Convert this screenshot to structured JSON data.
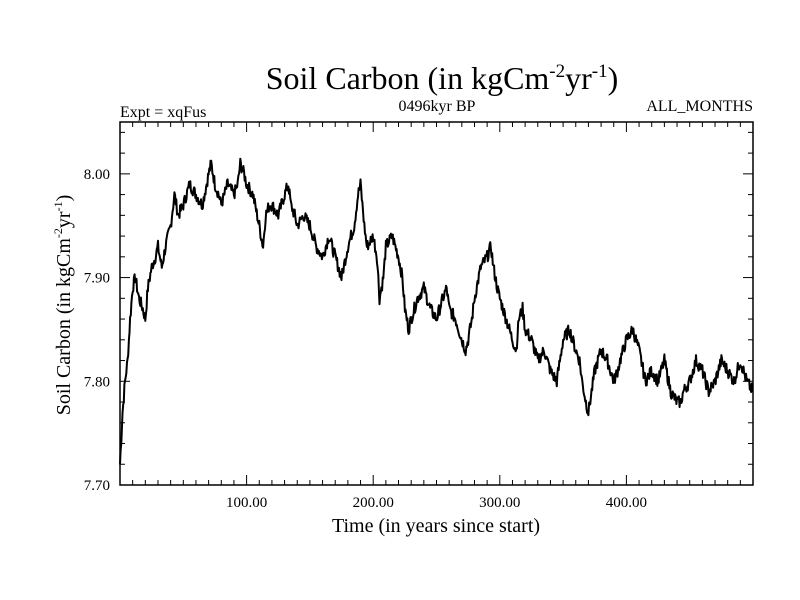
{
  "chart_data": {
    "type": "line",
    "title": "Soil Carbon (in kgCm",
    "title_sup1": "-2",
    "title_mid": "yr",
    "title_sup2": "-1",
    "title_end": ")",
    "subtitle_left": "Expt = xqFus",
    "subtitle_center": "0496kyr BP",
    "subtitle_right": "ALL_MONTHS",
    "xlabel": "Time (in years since start)",
    "ylabel": "Soil Carbon (in kgCm",
    "ylabel_sup1": "-2",
    "ylabel_mid": "yr",
    "ylabel_sup2": "-1",
    "ylabel_end": ")",
    "xlim": [
      0,
      500
    ],
    "ylim": [
      7.7,
      8.05
    ],
    "x_ticks": [
      {
        "value": 100,
        "label": "100.00"
      },
      {
        "value": 200,
        "label": "200.00"
      },
      {
        "value": 300,
        "label": "300.00"
      },
      {
        "value": 400,
        "label": "400.00"
      }
    ],
    "y_ticks": [
      {
        "value": 7.7,
        "label": "7.70"
      },
      {
        "value": 7.8,
        "label": "7.80"
      },
      {
        "value": 7.9,
        "label": "7.90"
      },
      {
        "value": 8.0,
        "label": "8.00"
      }
    ],
    "series": [
      {
        "name": "Soil Carbon",
        "color": "#000000",
        "x": [
          0,
          2,
          4,
          6,
          8,
          10,
          12,
          15,
          18,
          20,
          22,
          25,
          28,
          30,
          33,
          36,
          40,
          43,
          46,
          50,
          55,
          60,
          65,
          70,
          72,
          75,
          78,
          80,
          85,
          90,
          93,
          95,
          98,
          100,
          105,
          110,
          113,
          115,
          118,
          120,
          125,
          130,
          133,
          135,
          138,
          140,
          145,
          150,
          155,
          160,
          165,
          170,
          175,
          180,
          185,
          188,
          190,
          193,
          195,
          200,
          203,
          205,
          208,
          210,
          215,
          220,
          223,
          225,
          228,
          230,
          235,
          240,
          245,
          250,
          255,
          258,
          260,
          265,
          270,
          273,
          275,
          278,
          280,
          285,
          290,
          293,
          295,
          298,
          300,
          305,
          310,
          313,
          315,
          318,
          320,
          325,
          330,
          335,
          340,
          345,
          350,
          355,
          360,
          363,
          365,
          368,
          370,
          375,
          380,
          385,
          390,
          393,
          395,
          400,
          405,
          410,
          415,
          420,
          425,
          430,
          435,
          440,
          443,
          445,
          450,
          455,
          460,
          465,
          470,
          475,
          480,
          485,
          490,
          495,
          500
        ],
        "y": [
          7.72,
          7.77,
          7.8,
          7.82,
          7.86,
          7.89,
          7.9,
          7.88,
          7.87,
          7.86,
          7.89,
          7.91,
          7.92,
          7.93,
          7.91,
          7.93,
          7.95,
          7.98,
          7.96,
          7.97,
          7.99,
          7.98,
          7.97,
          8.0,
          8.01,
          7.99,
          7.98,
          7.97,
          7.99,
          7.98,
          7.99,
          8.01,
          8.0,
          7.99,
          7.98,
          7.95,
          7.93,
          7.96,
          7.97,
          7.97,
          7.96,
          7.98,
          7.99,
          7.97,
          7.96,
          7.95,
          7.96,
          7.95,
          7.93,
          7.92,
          7.94,
          7.92,
          7.9,
          7.93,
          7.95,
          7.98,
          7.99,
          7.95,
          7.93,
          7.94,
          7.92,
          7.88,
          7.9,
          7.93,
          7.94,
          7.92,
          7.9,
          7.87,
          7.85,
          7.86,
          7.88,
          7.89,
          7.87,
          7.86,
          7.88,
          7.89,
          7.87,
          7.86,
          7.84,
          7.83,
          7.84,
          7.86,
          7.88,
          7.91,
          7.92,
          7.93,
          7.91,
          7.89,
          7.88,
          7.86,
          7.84,
          7.83,
          7.86,
          7.87,
          7.85,
          7.84,
          7.82,
          7.83,
          7.81,
          7.8,
          7.84,
          7.85,
          7.83,
          7.82,
          7.8,
          7.78,
          7.77,
          7.81,
          7.83,
          7.82,
          7.8,
          7.81,
          7.82,
          7.84,
          7.85,
          7.83,
          7.8,
          7.81,
          7.8,
          7.82,
          7.79,
          7.78,
          7.78,
          7.79,
          7.8,
          7.82,
          7.81,
          7.79,
          7.8,
          7.82,
          7.81,
          7.8,
          7.82,
          7.8,
          7.79
        ]
      }
    ]
  }
}
